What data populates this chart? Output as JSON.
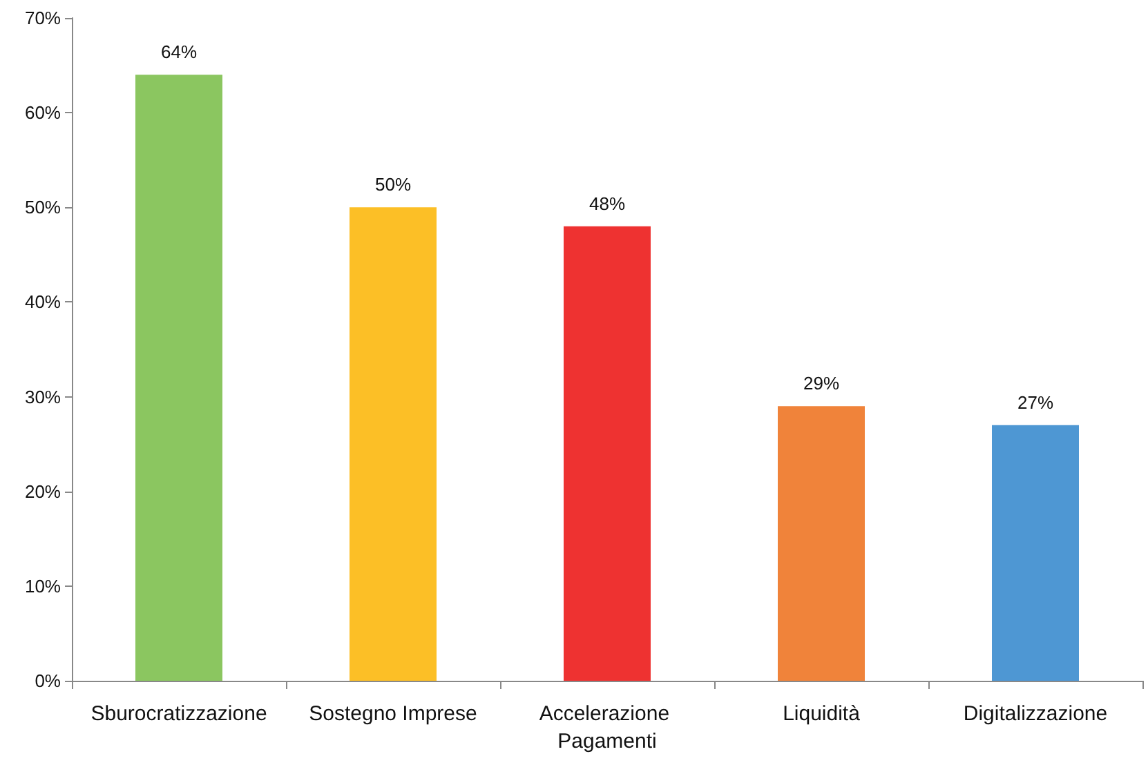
{
  "chart_data": {
    "type": "bar",
    "categories": [
      "Sburocratizzazione",
      "Sostegno Imprese",
      "Accelerazione Pagamenti",
      "Liquidità",
      "Digitalizzazione"
    ],
    "values": [
      64,
      50,
      48,
      29,
      27
    ],
    "colors": [
      "#8bc660",
      "#fcbf26",
      "#ee3231",
      "#f0833a",
      "#4e97d3"
    ],
    "value_labels": [
      "64%",
      "50%",
      "48%",
      "29%",
      "27%"
    ],
    "ylim": [
      0,
      70
    ],
    "yticks": [
      {
        "value": 0,
        "label": "0%"
      },
      {
        "value": 10,
        "label": "10%"
      },
      {
        "value": 20,
        "label": "20%"
      },
      {
        "value": 30,
        "label": "30%"
      },
      {
        "value": 40,
        "label": "40%"
      },
      {
        "value": 50,
        "label": "50%"
      },
      {
        "value": 60,
        "label": "60%"
      },
      {
        "value": 70,
        "label": "70%"
      }
    ],
    "grid": false
  }
}
